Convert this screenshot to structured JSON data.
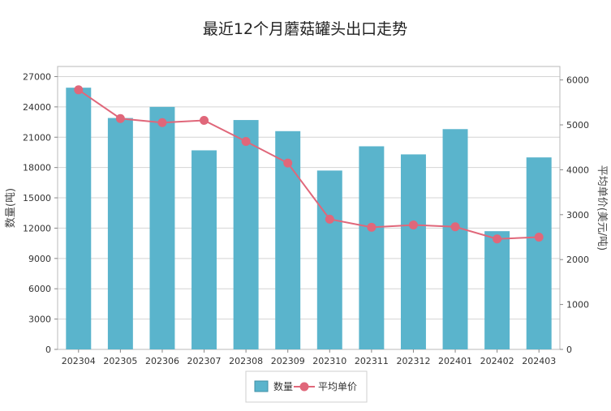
{
  "chart_data": {
    "type": "bar",
    "title": "最近12个月蘑菇罐头出口走势",
    "categories": [
      "202304",
      "202305",
      "202306",
      "202307",
      "202308",
      "202309",
      "202310",
      "202311",
      "202312",
      "202401",
      "202402",
      "202403"
    ],
    "series": [
      {
        "name": "数量",
        "type": "bar",
        "axis": "left",
        "color": "#5ab4cc",
        "values": [
          25900,
          22900,
          24000,
          19700,
          22700,
          21600,
          17700,
          20100,
          19300,
          21800,
          11700,
          19000
        ]
      },
      {
        "name": "平均单价",
        "type": "line",
        "axis": "right",
        "color": "#e0677a",
        "values": [
          5780,
          5140,
          5050,
          5100,
          4630,
          4150,
          2900,
          2720,
          2770,
          2730,
          2460,
          2500
        ]
      }
    ],
    "ylabel": "数量(吨)",
    "y2label": "平均单价(美元/吨)",
    "ylim": [
      0,
      28000
    ],
    "yticks": [
      0,
      3000,
      6000,
      9000,
      12000,
      15000,
      18000,
      21000,
      24000,
      27000
    ],
    "y2lim": [
      0,
      6300
    ],
    "y2ticks": [
      0,
      1000,
      2000,
      3000,
      4000,
      5000,
      6000
    ],
    "grid": true,
    "legend_position": "bottom"
  }
}
